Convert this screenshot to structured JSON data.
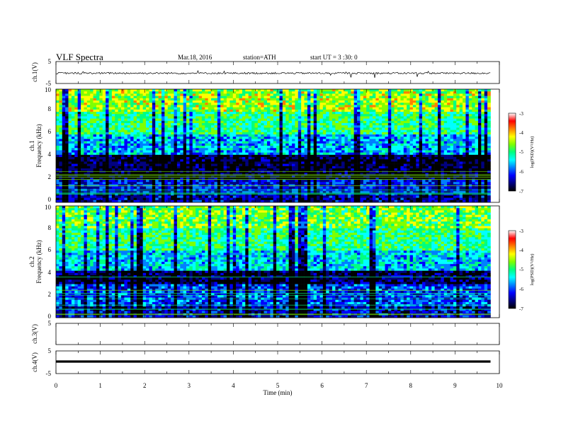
{
  "header": {
    "title": "VLF  Spectra",
    "date": "Mar.18, 2016",
    "station": "station=ATH",
    "start": "start  UT =  3 :30: 0"
  },
  "colors": {
    "axis": "#000000",
    "colormap": [
      "#000000",
      "#00007f",
      "#0000ff",
      "#007fff",
      "#00ffff",
      "#00ff7f",
      "#7fff00",
      "#ffff00",
      "#ff7f00",
      "#ff0000",
      "#ffffff"
    ]
  },
  "chart_data": [
    {
      "type": "line",
      "panel": "ch1-waveform",
      "ylabel": "ch.1(V)",
      "ylim": [
        -5,
        5
      ],
      "yticks": [
        "5",
        "-5"
      ],
      "trace_level_v": -0.3
    },
    {
      "type": "heatmap",
      "panel": "ch1-spectrogram",
      "ylabel": "ch.1\nFrequency  (kHz)",
      "ylim": [
        0,
        10
      ],
      "yticks": [
        "0",
        "2",
        "4",
        "6",
        "8",
        "10"
      ],
      "x_range_min": [
        0,
        9.8
      ],
      "colorbar": {
        "label": "log(PSD)(V²/Hz)",
        "range": [
          -7,
          -3
        ],
        "ticks": [
          "-3",
          "-4",
          "-5",
          "-6",
          "-7"
        ]
      },
      "bands_khz": [
        {
          "from": 0,
          "to": 0.8,
          "level": -6.3
        },
        {
          "from": 0.8,
          "to": 2.0,
          "level": -6.0
        },
        {
          "from": 2.0,
          "to": 4.2,
          "level": -6.7
        },
        {
          "from": 4.2,
          "to": 6.0,
          "level": -5.4
        },
        {
          "from": 6.0,
          "to": 8.0,
          "level": -4.8
        },
        {
          "from": 8.0,
          "to": 10,
          "level": -4.3
        }
      ]
    },
    {
      "type": "heatmap",
      "panel": "ch2-spectrogram",
      "ylabel": "ch.2\nFrequency  (kHz)",
      "ylim": [
        0,
        10
      ],
      "yticks": [
        "0",
        "2",
        "4",
        "6",
        "8",
        "10"
      ],
      "x_range_min": [
        0,
        9.8
      ],
      "colorbar": {
        "label": "log(PSD)(V²/Hz)",
        "range": [
          -7,
          -3
        ],
        "ticks": [
          "-3",
          "-4",
          "-5",
          "-6",
          "-7"
        ]
      },
      "bands_khz": [
        {
          "from": 0,
          "to": 1.0,
          "level": -6.2
        },
        {
          "from": 1.0,
          "to": 3.0,
          "level": -5.8
        },
        {
          "from": 3.0,
          "to": 4.2,
          "level": -6.6
        },
        {
          "from": 4.2,
          "to": 6.0,
          "level": -5.3
        },
        {
          "from": 6.0,
          "to": 8.0,
          "level": -4.8
        },
        {
          "from": 8.0,
          "to": 10,
          "level": -4.5
        }
      ]
    },
    {
      "type": "line",
      "panel": "ch3-waveform",
      "ylabel": "ch.3(V)",
      "ylim": [
        -5,
        5
      ],
      "yticks": [
        "5"
      ],
      "trace_level_v": null
    },
    {
      "type": "line",
      "panel": "ch4-waveform",
      "ylabel": "ch.4(V)",
      "ylim": [
        -5,
        5
      ],
      "yticks": [
        "5",
        "-5"
      ],
      "trace_level_v": 0
    }
  ],
  "xaxis": {
    "label": "Time  (min)",
    "range": [
      0,
      10
    ],
    "ticks": [
      "0",
      "1",
      "2",
      "3",
      "4",
      "5",
      "6",
      "7",
      "8",
      "9",
      "10"
    ]
  }
}
